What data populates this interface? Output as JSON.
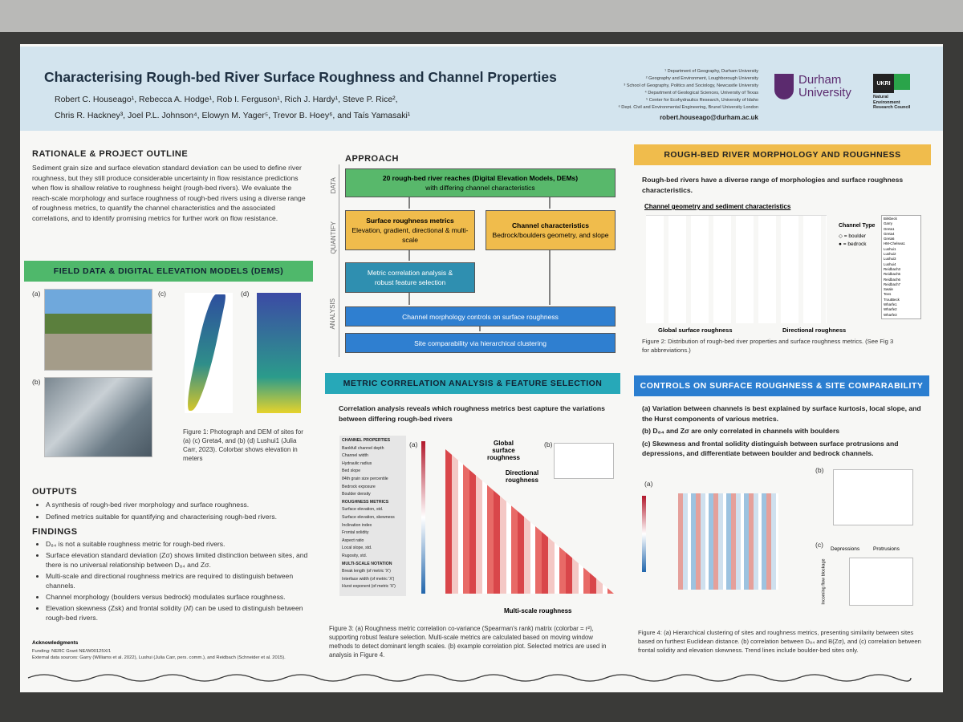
{
  "header": {
    "title": "Characterising Rough-bed River Surface Roughness and Channel Properties",
    "authors": [
      "Robert C. Houseago¹,  Rebecca A. Hodge¹,  Rob I. Ferguson¹,  Rich J. Hardy¹,  Steve P. Rice²,",
      "Chris R. Hackney³,  Joel P.L. Johnson⁴,  Elowyn M. Yager⁵,  Trevor B. Hoey⁶,  and  Taís Yamasaki¹"
    ],
    "affiliations": [
      "¹ Department of Geography, Durham University",
      "² Geography and Environment, Loughborough University",
      "³ School of Geography, Politics and Sociology, Newcastle University",
      "⁴ Department of Geological Sciences, University of Texas",
      "⁵ Center for Ecohydraulics Research, University of Idaho",
      "⁶ Dept. Civil and Environmental Engineering, Brunel University London"
    ],
    "email": "robert.houseago@durham.ac.uk",
    "logo_durham": [
      "Durham",
      "University"
    ],
    "logo_ukri": [
      "UKRI",
      "Natural",
      "Environment",
      "Research Council"
    ]
  },
  "rationale": {
    "heading": "RATIONALE & PROJECT OUTLINE",
    "text": "Sediment grain size and surface elevation standard deviation can be used to define river roughness, but they still produce considerable uncertainty in flow resistance predictions when flow is shallow relative to roughness height (rough-bed rivers). We evaluate the reach-scale morphology and surface roughness of rough-bed rivers using a diverse range of roughness metrics, to quantify the channel characteristics and the associated correlations, and to identify promising metrics for further work on flow resistance."
  },
  "field_data": {
    "heading": "FIELD DATA & DIGITAL ELEVATION MODELS (DEMS)",
    "panels": [
      "(a)",
      "(b)",
      "(c)",
      "(d)"
    ],
    "caption": "Figure 1: Photograph and DEM of sites for (a) (c) Greta4, and (b) (d) Lushui1 (Julia Carr, 2023). Colorbar shows elevation in meters"
  },
  "outputs": {
    "heading": "OUTPUTS",
    "items": [
      "A synthesis of rough-bed river morphology and surface roughness.",
      "Defined metrics suitable for quantifying and characterising rough-bed rivers."
    ]
  },
  "findings": {
    "heading": "FINDINGS",
    "items": [
      "D₈₄ is not a suitable roughness metric for rough-bed rivers.",
      "Surface elevation standard deviation (Zσ) shows limited distinction between sites, and there is no universal relationship between D₈₄ and Zσ.",
      "Multi-scale and directional roughness metrics are required to distinguish between channels.",
      "Channel morphology (boulders versus bedrock) modulates surface roughness.",
      "Elevation skewness (Zsk) and frontal solidity (λf) can be used to distinguish between rough-bed rivers."
    ]
  },
  "acknowledgements": {
    "heading": "Acknowledgments",
    "lines": [
      "Funding: NERC Grant NE/W00125X/1",
      "External data sources: Garry (Williams et al. 2022), Lushui (Julia Carr, pers. comm.), and Reidbach (Schneider et al. 2015)."
    ]
  },
  "approach": {
    "heading": "APPROACH",
    "stages": [
      "DATA",
      "QUANTIFY",
      "ANALYSIS"
    ],
    "boxes": [
      [
        "20 rough-bed river reaches (Digital Elevation Models, DEMs)",
        "with differing channel characteristics"
      ],
      [
        "Surface roughness metrics",
        "Elevation, gradient, directional & multi-scale"
      ],
      [
        "Channel characteristics",
        "Bedrock/boulders geometry, and slope"
      ],
      [
        "Metric correlation analysis &",
        "robust feature selection"
      ],
      [
        "Channel morphology controls on surface roughness"
      ],
      [
        "Site comparability via hierarchical clustering"
      ]
    ]
  },
  "correlation": {
    "heading": "METRIC CORRELATION ANALYSIS & FEATURE SELECTION",
    "intro": "Correlation analysis reveals which roughness metrics best capture the variations between differing rough-bed rivers",
    "table": [
      "CHANNEL PROPERTIES",
      "Bankfull channel depth",
      "Channel width",
      "Hydraulic radius",
      "Bed slope",
      "84th grain size percentile",
      "Bedrock exposure",
      "Boulder density",
      "ROUGHNESS METRICS",
      "Surface elevation, std.",
      "Surface elevation, skewness",
      "Inclination index",
      "Frontal solidity",
      "Aspect ratio",
      "Local slope, std.",
      "Rugosity, std.",
      "MULTI-SCALE NOTATION",
      "Break length (of metric 'X')",
      "Interface width (of metric 'X')",
      "Hurst exponent (of metric 'X')"
    ],
    "labels": [
      "(a)",
      "(b)",
      "Global surface roughness",
      "Directional roughness",
      "Multi-scale roughness"
    ],
    "caption": "Figure 3: (a) Roughness metric correlation co-variance (Spearman's rank) matrix (colorbar = r²), supporting robust feature selection. Multi-scale metrics are calculated based on moving window methods to detect dominant length scales. (b) example correlation plot. Selected metrics are used in analysis in Figure 4."
  },
  "morphology": {
    "heading": "ROUGH-BED RIVER MORPHOLOGY AND ROUGHNESS",
    "intro": "Rough-bed rivers have a diverse range of morphologies and surface roughness characteristics.",
    "figure_title": "Channel geometry and sediment characteristics",
    "legend_title": "Channel Type",
    "legend": [
      "◇ = boulder",
      "● = bedrock"
    ],
    "group_labels": [
      "Global surface roughness",
      "Directional roughness"
    ],
    "sites": [
      "Birkbeck",
      "Garry",
      "Greta1",
      "Greta4",
      "Greta6",
      "HM-Chelsea1",
      "Lushui1",
      "Lushui2",
      "Lushui3",
      "Lushui4",
      "Reidbach3",
      "Reidbach5",
      "Reidbach6",
      "Reidbach7",
      "Swale",
      "Tees",
      "TroutBeck",
      "Wharfe1",
      "Wharfe2",
      "Wharfe3"
    ],
    "caption": "Figure 2: Distribution of rough-bed river properties and surface roughness metrics. (See Fig 3 for abbreviations.)"
  },
  "controls": {
    "heading": "CONTROLS ON SURFACE ROUGHNESS & SITE COMPARABILITY",
    "items": [
      "(a)  Variation between channels is best explained by surface kurtosis, local slope, and the Hurst components of various metrics.",
      "(b)  D₈₄ and Zσ are only correlated in channels with boulders",
      "(c)  Skewness and frontal solidity distinguish between surface protrusions and depressions, and differentiate between boulder and bedrock channels."
    ],
    "labels": [
      "(a)",
      "(b)",
      "(c)",
      "Depressions",
      "Protrusions",
      "Incoming flow blockage"
    ],
    "caption": "Figure 4: (a) Hierarchical clustering of sites and roughness metrics, presenting similarity between sites based on furthest Euclidean distance. (b) correlation between D₈₄ and B(Zσ), and (c) correlation between frontal solidity and elevation skewness. Trend lines include boulder-bed sites only."
  }
}
